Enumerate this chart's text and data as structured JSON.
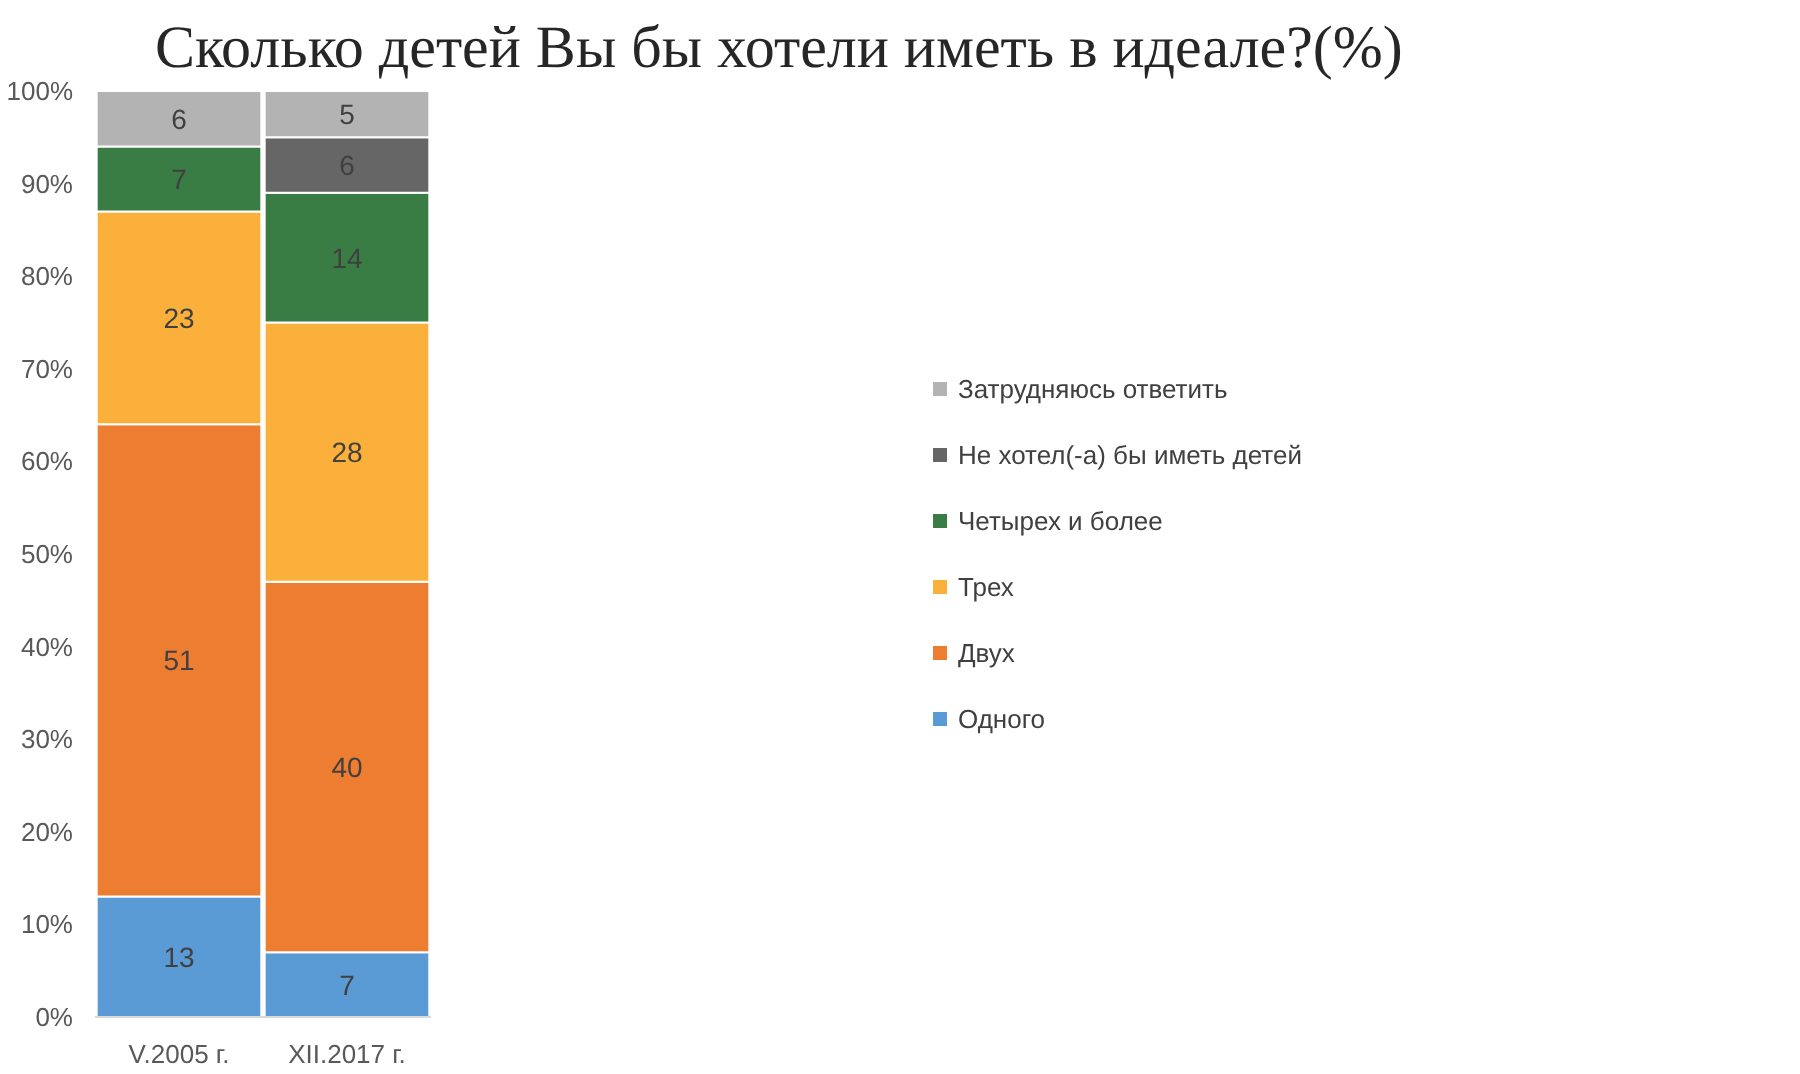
{
  "chart_data": {
    "type": "bar",
    "title": "Сколько детей Вы бы хотели иметь в идеале?(%)",
    "categories": [
      "V.2005 г.",
      "XII.2017 г."
    ],
    "stacked": true,
    "data_labels": true,
    "legend": "right",
    "ylim": [
      0,
      100
    ],
    "yticks": [
      {
        "value": 0,
        "label": "0%"
      },
      {
        "value": 10,
        "label": "10%"
      },
      {
        "value": 20,
        "label": "20%"
      },
      {
        "value": 30,
        "label": "30%"
      },
      {
        "value": 40,
        "label": "40%"
      },
      {
        "value": 50,
        "label": "50%"
      },
      {
        "value": 60,
        "label": "60%"
      },
      {
        "value": 70,
        "label": "70%"
      },
      {
        "value": 80,
        "label": "80%"
      },
      {
        "value": 90,
        "label": "90%"
      },
      {
        "value": 100,
        "label": "100%"
      }
    ],
    "series": [
      {
        "name": "Одного",
        "color": "#5b9bd5",
        "values": [
          13,
          7
        ]
      },
      {
        "name": "Двух",
        "color": "#ed7d31",
        "values": [
          51,
          40
        ]
      },
      {
        "name": "Трех",
        "color": "#fbb03b",
        "values": [
          23,
          28
        ]
      },
      {
        "name": "Четырех и более",
        "color": "#3a7d44",
        "values": [
          7,
          14
        ]
      },
      {
        "name": "Не хотел(-а) бы иметь детей",
        "color": "#666666",
        "values": [
          null,
          6
        ]
      },
      {
        "name": "Затрудняюсь ответить",
        "color": "#b3b3b3",
        "values": [
          6,
          5
        ]
      }
    ]
  }
}
